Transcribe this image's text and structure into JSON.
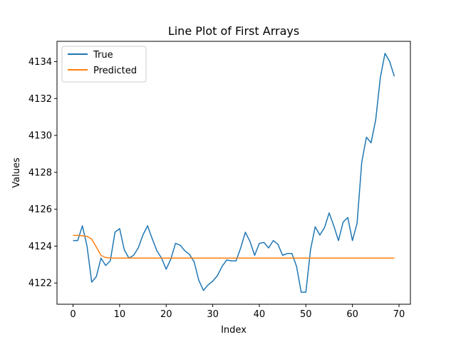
{
  "chart_data": {
    "type": "line",
    "title": "Line Plot of First Arrays",
    "xlabel": "Index",
    "ylabel": "Values",
    "xlim": [
      -3.45,
      72.45
    ],
    "ylim": [
      4120.85,
      4135.1
    ],
    "xticks": [
      0,
      10,
      20,
      30,
      40,
      50,
      60,
      70
    ],
    "yticks": [
      4122,
      4124,
      4126,
      4128,
      4130,
      4132,
      4134
    ],
    "grid": false,
    "legend_position": "top-left",
    "x": [
      0,
      1,
      2,
      3,
      4,
      5,
      6,
      7,
      8,
      9,
      10,
      11,
      12,
      13,
      14,
      15,
      16,
      17,
      18,
      19,
      20,
      21,
      22,
      23,
      24,
      25,
      26,
      27,
      28,
      29,
      30,
      31,
      32,
      33,
      34,
      35,
      36,
      37,
      38,
      39,
      40,
      41,
      42,
      43,
      44,
      45,
      46,
      47,
      48,
      49,
      50,
      51,
      52,
      53,
      54,
      55,
      56,
      57,
      58,
      59,
      60,
      61,
      62,
      63,
      64,
      65,
      66,
      67,
      68,
      69
    ],
    "series": [
      {
        "name": "True",
        "color": "#1f77b4",
        "values": [
          4124.3,
          4124.3,
          4125.1,
          4124.0,
          4122.05,
          4122.35,
          4123.35,
          4122.95,
          4123.2,
          4124.75,
          4124.95,
          4123.8,
          4123.35,
          4123.5,
          4123.9,
          4124.6,
          4125.1,
          4124.4,
          4123.75,
          4123.35,
          4122.75,
          4123.3,
          4124.15,
          4124.05,
          4123.75,
          4123.55,
          4123.15,
          4122.15,
          4121.6,
          4121.9,
          4122.1,
          4122.4,
          4122.9,
          4123.25,
          4123.2,
          4123.2,
          4123.9,
          4124.75,
          4124.25,
          4123.5,
          4124.15,
          4124.2,
          4123.9,
          4124.3,
          4124.1,
          4123.5,
          4123.6,
          4123.6,
          4122.9,
          4121.5,
          4121.5,
          4123.8,
          4125.05,
          4124.6,
          4125.0,
          4125.8,
          4125.1,
          4124.3,
          4125.3,
          4125.55,
          4124.3,
          4125.25,
          4128.55,
          4129.9,
          4129.6,
          4130.85,
          4133.15,
          4134.45,
          4134.0,
          4133.2
        ]
      },
      {
        "name": "Predicted",
        "color": "#ff7f0e",
        "values": [
          4124.58,
          4124.58,
          4124.56,
          4124.53,
          4124.38,
          4123.95,
          4123.5,
          4123.38,
          4123.36,
          4123.35,
          4123.35,
          4123.35,
          4123.35,
          4123.35,
          4123.35,
          4123.35,
          4123.35,
          4123.35,
          4123.35,
          4123.35,
          4123.35,
          4123.35,
          4123.35,
          4123.35,
          4123.35,
          4123.35,
          4123.35,
          4123.35,
          4123.35,
          4123.35,
          4123.35,
          4123.35,
          4123.35,
          4123.35,
          4123.35,
          4123.35,
          4123.35,
          4123.35,
          4123.35,
          4123.35,
          4123.35,
          4123.35,
          4123.35,
          4123.35,
          4123.35,
          4123.35,
          4123.35,
          4123.35,
          4123.35,
          4123.35,
          4123.35,
          4123.35,
          4123.35,
          4123.35,
          4123.35,
          4123.35,
          4123.35,
          4123.35,
          4123.35,
          4123.35,
          4123.35,
          4123.35,
          4123.35,
          4123.35,
          4123.35,
          4123.35,
          4123.35,
          4123.35,
          4123.35,
          4123.35
        ]
      }
    ]
  }
}
